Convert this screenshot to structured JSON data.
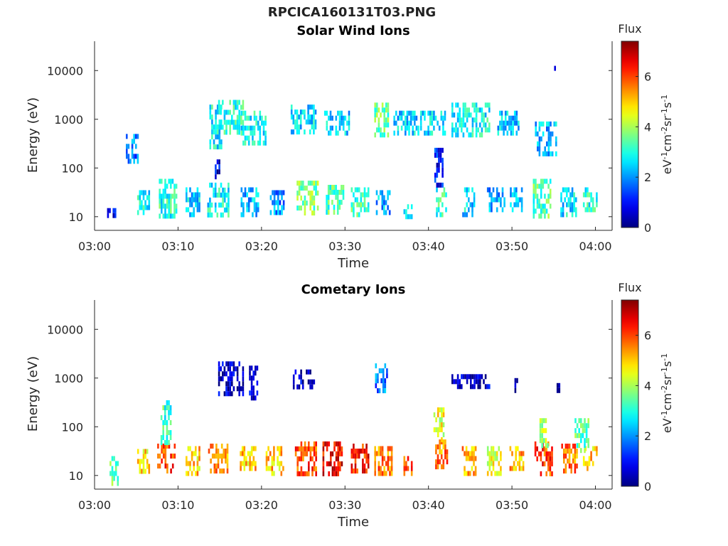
{
  "figure": {
    "title_line1": "RPCICA160131T03.PNG",
    "colorbar_title": "Flux",
    "colorbar_unit": "eV",
    "colorbar_unit_parts": [
      "eV",
      "-1",
      "cm",
      "-2",
      "sr",
      "-1",
      "s",
      "-1"
    ],
    "colormap": "jet",
    "colors": {
      "axis": "#262626",
      "background": "#ffffff"
    }
  },
  "chart_data": [
    {
      "type": "heatmap",
      "title": "Solar Wind Ions",
      "xlabel": "Time",
      "ylabel": "Energy (eV)",
      "xlim": [
        "03:00",
        "04:02"
      ],
      "ylim": [
        6,
        40000
      ],
      "yscale": "log",
      "xticks": [
        "03:00",
        "03:10",
        "03:20",
        "03:30",
        "03:40",
        "03:50",
        "04:00"
      ],
      "yticks": [
        10,
        100,
        1000,
        10000
      ],
      "ytick_labels": [
        "10",
        "100",
        "1000",
        "10000"
      ],
      "colorbar": {
        "label": "Flux",
        "range": [
          0,
          7.4
        ],
        "ticks": [
          0,
          2,
          4,
          6
        ]
      },
      "clusters": [
        {
          "t": 2.0,
          "tw": 1.0,
          "e_lo": 10,
          "e_hi": 15,
          "flux": 1.0
        },
        {
          "t": 5.8,
          "tw": 1.4,
          "e_lo": 11,
          "e_hi": 35,
          "flux": 2.8
        },
        {
          "t": 8.7,
          "tw": 2.0,
          "e_lo": 11,
          "e_hi": 60,
          "flux": 3.0
        },
        {
          "t": 11.7,
          "tw": 1.6,
          "e_lo": 11,
          "e_hi": 40,
          "flux": 2.5
        },
        {
          "t": 14.8,
          "tw": 2.6,
          "e_lo": 11,
          "e_hi": 50,
          "flux": 2.8
        },
        {
          "t": 18.5,
          "tw": 2.0,
          "e_lo": 11,
          "e_hi": 40,
          "flux": 2.3
        },
        {
          "t": 21.8,
          "tw": 1.6,
          "e_lo": 11,
          "e_hi": 35,
          "flux": 2.0
        },
        {
          "t": 25.5,
          "tw": 2.6,
          "e_lo": 12,
          "e_hi": 55,
          "flux": 3.6
        },
        {
          "t": 28.7,
          "tw": 2.0,
          "e_lo": 11,
          "e_hi": 45,
          "flux": 3.3
        },
        {
          "t": 31.7,
          "tw": 2.0,
          "e_lo": 11,
          "e_hi": 40,
          "flux": 3.2
        },
        {
          "t": 34.5,
          "tw": 1.6,
          "e_lo": 11,
          "e_hi": 35,
          "flux": 2.2
        },
        {
          "t": 37.5,
          "tw": 1.0,
          "e_lo": 11,
          "e_hi": 18,
          "flux": 2.6
        },
        {
          "t": 41.5,
          "tw": 1.2,
          "e_lo": 11,
          "e_hi": 40,
          "flux": 3.0
        },
        {
          "t": 44.8,
          "tw": 1.5,
          "e_lo": 11,
          "e_hi": 40,
          "flux": 2.5
        },
        {
          "t": 48.0,
          "tw": 2.0,
          "e_lo": 14,
          "e_hi": 40,
          "flux": 2.2
        },
        {
          "t": 50.5,
          "tw": 1.5,
          "e_lo": 14,
          "e_hi": 40,
          "flux": 2.5
        },
        {
          "t": 53.5,
          "tw": 2.0,
          "e_lo": 11,
          "e_hi": 60,
          "flux": 3.4
        },
        {
          "t": 56.7,
          "tw": 1.8,
          "e_lo": 11,
          "e_hi": 40,
          "flux": 2.6
        },
        {
          "t": 59.3,
          "tw": 1.6,
          "e_lo": 14,
          "e_hi": 40,
          "flux": 3.0
        },
        {
          "t": 4.5,
          "tw": 1.5,
          "e_lo": 150,
          "e_hi": 500,
          "flux": 1.8
        },
        {
          "t": 14.5,
          "tw": 1.5,
          "e_lo": 300,
          "e_hi": 2000,
          "flux": 2.8
        },
        {
          "t": 16.3,
          "tw": 3.0,
          "e_lo": 500,
          "e_hi": 2500,
          "flux": 3.0
        },
        {
          "t": 19.0,
          "tw": 3.0,
          "e_lo": 350,
          "e_hi": 1500,
          "flux": 2.8
        },
        {
          "t": 25.0,
          "tw": 3.0,
          "e_lo": 500,
          "e_hi": 2000,
          "flux": 2.6
        },
        {
          "t": 29.0,
          "tw": 3.0,
          "e_lo": 500,
          "e_hi": 1500,
          "flux": 2.5
        },
        {
          "t": 34.3,
          "tw": 1.6,
          "e_lo": 500,
          "e_hi": 2200,
          "flux": 3.5
        },
        {
          "t": 37.3,
          "tw": 3.0,
          "e_lo": 500,
          "e_hi": 1500,
          "flux": 2.5
        },
        {
          "t": 40.5,
          "tw": 3.0,
          "e_lo": 500,
          "e_hi": 1500,
          "flux": 2.6
        },
        {
          "t": 45.0,
          "tw": 4.5,
          "e_lo": 500,
          "e_hi": 2200,
          "flux": 2.8
        },
        {
          "t": 49.5,
          "tw": 2.5,
          "e_lo": 500,
          "e_hi": 1500,
          "flux": 2.4
        },
        {
          "t": 54.0,
          "tw": 2.5,
          "e_lo": 200,
          "e_hi": 900,
          "flux": 2.3
        },
        {
          "t": 14.7,
          "tw": 0.6,
          "e_lo": 60,
          "e_hi": 150,
          "flux": 0.8
        },
        {
          "t": 41.2,
          "tw": 1.0,
          "e_lo": 50,
          "e_hi": 260,
          "flux": 1.0
        },
        {
          "t": 55.2,
          "tw": 0.3,
          "e_lo": 11000,
          "e_hi": 12500,
          "flux": 0.2
        }
      ]
    },
    {
      "type": "heatmap",
      "title": "Cometary Ions",
      "xlabel": "Time",
      "ylabel": "Energy (eV)",
      "xlim": [
        "03:00",
        "04:02"
      ],
      "ylim": [
        6,
        40000
      ],
      "yscale": "log",
      "xticks": [
        "03:00",
        "03:10",
        "03:20",
        "03:30",
        "03:40",
        "03:50",
        "04:00"
      ],
      "yticks": [
        10,
        100,
        1000,
        10000
      ],
      "ytick_labels": [
        "10",
        "100",
        "1000",
        "10000"
      ],
      "colorbar": {
        "label": "Flux",
        "range": [
          0,
          7.4
        ],
        "ticks": [
          0,
          2,
          4,
          6
        ]
      },
      "clusters": [
        {
          "t": 2.3,
          "tw": 1.0,
          "e_lo": 7,
          "e_hi": 25,
          "flux": 3.6
        },
        {
          "t": 5.8,
          "tw": 1.4,
          "e_lo": 11,
          "e_hi": 35,
          "flux": 4.8
        },
        {
          "t": 8.5,
          "tw": 2.0,
          "e_lo": 12,
          "e_hi": 45,
          "flux": 6.0
        },
        {
          "t": 11.7,
          "tw": 1.6,
          "e_lo": 11,
          "e_hi": 40,
          "flux": 5.0
        },
        {
          "t": 14.8,
          "tw": 2.4,
          "e_lo": 11,
          "e_hi": 45,
          "flux": 5.4
        },
        {
          "t": 18.3,
          "tw": 1.8,
          "e_lo": 11,
          "e_hi": 40,
          "flux": 5.0
        },
        {
          "t": 21.5,
          "tw": 2.0,
          "e_lo": 11,
          "e_hi": 40,
          "flux": 5.0
        },
        {
          "t": 25.3,
          "tw": 2.6,
          "e_lo": 12,
          "e_hi": 50,
          "flux": 6.0
        },
        {
          "t": 28.5,
          "tw": 2.4,
          "e_lo": 11,
          "e_hi": 50,
          "flux": 6.4
        },
        {
          "t": 31.7,
          "tw": 2.0,
          "e_lo": 11,
          "e_hi": 45,
          "flux": 6.3
        },
        {
          "t": 34.5,
          "tw": 2.0,
          "e_lo": 11,
          "e_hi": 40,
          "flux": 5.6
        },
        {
          "t": 37.5,
          "tw": 1.0,
          "e_lo": 11,
          "e_hi": 25,
          "flux": 5.8
        },
        {
          "t": 41.5,
          "tw": 1.4,
          "e_lo": 14,
          "e_hi": 55,
          "flux": 5.6
        },
        {
          "t": 44.8,
          "tw": 1.6,
          "e_lo": 11,
          "e_hi": 40,
          "flux": 5.2
        },
        {
          "t": 47.8,
          "tw": 1.6,
          "e_lo": 11,
          "e_hi": 40,
          "flux": 4.5
        },
        {
          "t": 50.5,
          "tw": 1.6,
          "e_lo": 14,
          "e_hi": 40,
          "flux": 5.2
        },
        {
          "t": 53.7,
          "tw": 2.0,
          "e_lo": 11,
          "e_hi": 50,
          "flux": 6.0
        },
        {
          "t": 56.8,
          "tw": 1.8,
          "e_lo": 11,
          "e_hi": 45,
          "flux": 5.6
        },
        {
          "t": 59.3,
          "tw": 1.6,
          "e_lo": 14,
          "e_hi": 40,
          "flux": 5.0
        },
        {
          "t": 8.5,
          "tw": 1.2,
          "e_lo": 45,
          "e_hi": 350,
          "flux": 3.2
        },
        {
          "t": 41.2,
          "tw": 1.2,
          "e_lo": 55,
          "e_hi": 250,
          "flux": 4.5
        },
        {
          "t": 53.8,
          "tw": 1.0,
          "e_lo": 45,
          "e_hi": 150,
          "flux": 4.0
        },
        {
          "t": 58.3,
          "tw": 1.6,
          "e_lo": 30,
          "e_hi": 150,
          "flux": 3.4
        },
        {
          "t": 16.3,
          "tw": 3.0,
          "e_lo": 500,
          "e_hi": 2200,
          "flux": 0.5
        },
        {
          "t": 19.0,
          "tw": 1.0,
          "e_lo": 400,
          "e_hi": 1800,
          "flux": 0.6
        },
        {
          "t": 25.0,
          "tw": 2.5,
          "e_lo": 600,
          "e_hi": 1500,
          "flux": 0.6
        },
        {
          "t": 34.3,
          "tw": 1.4,
          "e_lo": 600,
          "e_hi": 2000,
          "flux": 1.8
        },
        {
          "t": 45.0,
          "tw": 4.5,
          "e_lo": 600,
          "e_hi": 1200,
          "flux": 0.5
        },
        {
          "t": 50.5,
          "tw": 0.4,
          "e_lo": 600,
          "e_hi": 1000,
          "flux": 0.4
        },
        {
          "t": 55.5,
          "tw": 0.3,
          "e_lo": 600,
          "e_hi": 1000,
          "flux": 0.4
        }
      ]
    }
  ]
}
